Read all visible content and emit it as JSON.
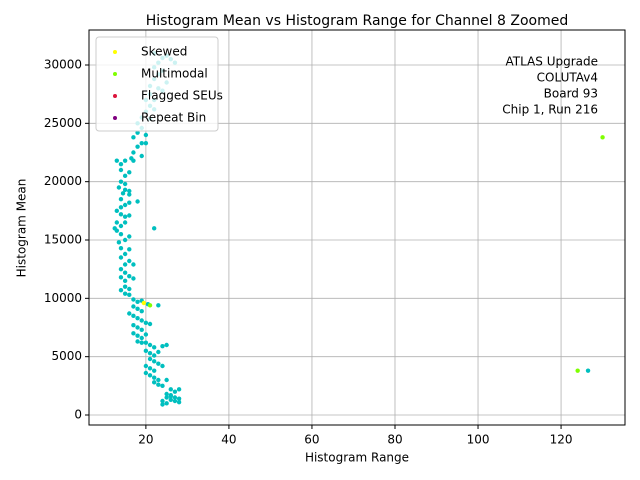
{
  "chart_data": {
    "type": "scatter",
    "title": "Histogram Mean vs Histogram Range for Channel 8 Zoomed",
    "x_label": "Histogram Range",
    "y_label": "Histogram Mean",
    "annotation": [
      "ATLAS Upgrade",
      "COLUTAv4",
      "Board 93",
      "Chip 1, Run 216"
    ],
    "xlim": [
      6.3,
      135.4
    ],
    "ylim": [
      -857,
      33000
    ],
    "xticks": [
      20,
      40,
      60,
      80,
      100,
      120
    ],
    "yticks": [
      0,
      5000,
      10000,
      15000,
      20000,
      25000,
      30000
    ],
    "grid": true,
    "legend": "upper left",
    "series": [
      {
        "color": "#00bfbf",
        "x": [
          13,
          14,
          15,
          14,
          15,
          14,
          15,
          13.5,
          14.5,
          16,
          14,
          15,
          16,
          13,
          14,
          15,
          13,
          14,
          12.5,
          13,
          14,
          15,
          13.5,
          14,
          16,
          15,
          14,
          16,
          15,
          17,
          14,
          15,
          14,
          16,
          15,
          15,
          16,
          14,
          15,
          16,
          17,
          16,
          16,
          16,
          16,
          17,
          16.5,
          15,
          14,
          15,
          17,
          18,
          19,
          17,
          18,
          19,
          16,
          17,
          18,
          19,
          20,
          17,
          18,
          19,
          21,
          17,
          18,
          19,
          20,
          18,
          19,
          23,
          20,
          21,
          22,
          20,
          21,
          22,
          23,
          24,
          25,
          21,
          22,
          23,
          20,
          21,
          22,
          24,
          20,
          21,
          22,
          23,
          22,
          23,
          25,
          24,
          26,
          27,
          28,
          25,
          26,
          27,
          28,
          24,
          25,
          26,
          27,
          28,
          24,
          25,
          26,
          17,
          18,
          19,
          17,
          18,
          19,
          20,
          18,
          19,
          20,
          21,
          20,
          21,
          22,
          21,
          22,
          23,
          22,
          23,
          24,
          25,
          26,
          27,
          24,
          25,
          23,
          22,
          24,
          19,
          20,
          21,
          22,
          22,
          126.5,
          20.5,
          18
        ],
        "values": [
          21800,
          21500,
          21800,
          21000,
          20500,
          20000,
          19800,
          19500,
          19000,
          19200,
          18500,
          18000,
          18200,
          17500,
          17200,
          17000,
          16500,
          16200,
          16000,
          15800,
          15500,
          15000,
          14800,
          14300,
          14200,
          13800,
          13500,
          13200,
          12900,
          12900,
          12500,
          12200,
          11800,
          11900,
          11500,
          11000,
          10800,
          10700,
          10400,
          10300,
          11700,
          15300,
          17100,
          18900,
          20800,
          21800,
          22000,
          16500,
          17800,
          19300,
          9900,
          9700,
          9800,
          9300,
          9100,
          8900,
          8700,
          8500,
          8300,
          8100,
          7900,
          7700,
          7500,
          7300,
          7800,
          7000,
          6800,
          6600,
          6900,
          6300,
          6200,
          9400,
          6200,
          6000,
          5800,
          5500,
          5300,
          5100,
          5400,
          5900,
          6000,
          4800,
          4600,
          4400,
          4200,
          4000,
          3800,
          4200,
          3600,
          3400,
          3200,
          3000,
          2800,
          2600,
          3000,
          2500,
          2200,
          2000,
          2200,
          1800,
          1600,
          1500,
          1400,
          1200,
          1000,
          1300,
          1200,
          1100,
          900,
          1500,
          1700,
          22500,
          23000,
          23300,
          23800,
          24200,
          24600,
          24000,
          25000,
          25500,
          26000,
          25400,
          27000,
          27500,
          27000,
          28200,
          28800,
          29200,
          29800,
          30200,
          30600,
          30800,
          30500,
          30200,
          29500,
          28500,
          28000,
          26200,
          27800,
          22200,
          23300,
          26500,
          31000,
          16000,
          3800,
          9500,
          18300
        ]
      },
      {
        "name": "Skewed",
        "color": "#ffff00",
        "x": [
          19.5
        ],
        "values": [
          9600
        ]
      },
      {
        "name": "Multimodal",
        "color": "#7fff00",
        "x": [
          130,
          124,
          21
        ],
        "values": [
          23800,
          3800,
          9400
        ]
      },
      {
        "name": "Flagged SEUs",
        "color": "#dc143c",
        "x": [],
        "values": []
      },
      {
        "name": "Repeat Bin",
        "color": "#800080",
        "x": [],
        "values": []
      }
    ]
  }
}
